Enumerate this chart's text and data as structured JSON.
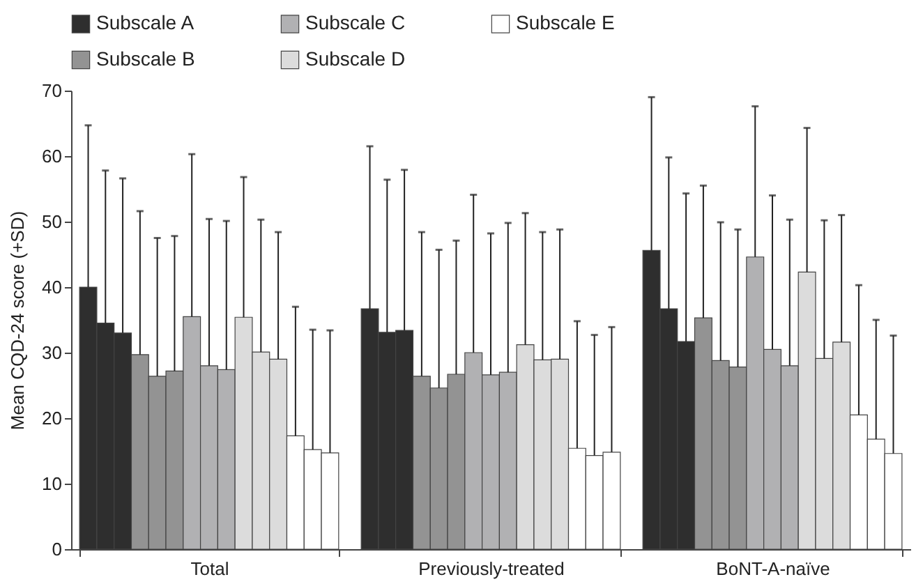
{
  "chart_data": {
    "type": "bar",
    "ylabel": "Mean CQD-24 score (+SD)",
    "categories": [
      "Total",
      "Previously-treated",
      "BoNT-A-naïve"
    ],
    "ylim": [
      0,
      70
    ],
    "yticks": [
      0,
      10,
      20,
      30,
      40,
      50,
      60,
      70
    ],
    "grid": false,
    "legend": "top",
    "series": [
      {
        "name": "Subscale A",
        "color": "#2e2e2e",
        "values": [
          40.0,
          36.7,
          45.6
        ],
        "errors": [
          [
            40.0,
            64.7
          ],
          [
            36.7,
            61.5
          ],
          [
            45.6,
            69.0
          ]
        ]
      },
      {
        "color": "#2e2e2e",
        "values": [
          34.5,
          33.1,
          36.7
        ],
        "errors": [
          [
            34.5,
            57.8
          ],
          [
            33.1,
            56.4
          ],
          [
            36.7,
            59.8
          ]
        ]
      },
      {
        "color": "#2e2e2e",
        "values": [
          33.0,
          33.4,
          31.7
        ],
        "errors": [
          [
            33.0,
            56.6
          ],
          [
            33.4,
            57.9
          ],
          [
            31.7,
            54.3
          ]
        ]
      },
      {
        "name": "Subscale B",
        "color": "#939393",
        "values": [
          29.7,
          26.4,
          35.3
        ],
        "errors": [
          [
            29.7,
            51.6
          ],
          [
            26.4,
            48.4
          ],
          [
            35.3,
            55.5
          ]
        ]
      },
      {
        "color": "#939393",
        "values": [
          26.4,
          24.6,
          28.8
        ],
        "errors": [
          [
            26.4,
            47.5
          ],
          [
            24.6,
            45.7
          ],
          [
            28.8,
            49.9
          ]
        ]
      },
      {
        "color": "#939393",
        "values": [
          27.2,
          26.7,
          27.8
        ],
        "errors": [
          [
            27.2,
            47.8
          ],
          [
            26.7,
            47.1
          ],
          [
            27.8,
            48.8
          ]
        ]
      },
      {
        "name": "Subscale C",
        "color": "#b1b1b3",
        "values": [
          35.5,
          30.0,
          44.6
        ],
        "errors": [
          [
            35.5,
            60.3
          ],
          [
            30.0,
            54.1
          ],
          [
            44.6,
            67.6
          ]
        ]
      },
      {
        "color": "#b1b1b3",
        "values": [
          28.0,
          26.6,
          30.5
        ],
        "errors": [
          [
            28.0,
            50.4
          ],
          [
            26.6,
            48.2
          ],
          [
            30.5,
            54.0
          ]
        ]
      },
      {
        "color": "#b1b1b3",
        "values": [
          27.4,
          27.0,
          28.0
        ],
        "errors": [
          [
            27.4,
            50.1
          ],
          [
            27.0,
            49.8
          ],
          [
            28.0,
            50.3
          ]
        ]
      },
      {
        "name": "Subscale D",
        "color": "#dcdcdc",
        "values": [
          35.4,
          31.2,
          42.3
        ],
        "errors": [
          [
            35.4,
            56.8
          ],
          [
            31.2,
            51.3
          ],
          [
            42.3,
            64.3
          ]
        ]
      },
      {
        "color": "#dcdcdc",
        "values": [
          30.1,
          28.9,
          29.1
        ],
        "errors": [
          [
            30.1,
            50.3
          ],
          [
            28.9,
            48.4
          ],
          [
            29.1,
            50.2
          ]
        ]
      },
      {
        "color": "#dcdcdc",
        "values": [
          29.0,
          29.0,
          31.6
        ],
        "errors": [
          [
            29.0,
            48.4
          ],
          [
            29.0,
            48.8
          ],
          [
            31.6,
            51.0
          ]
        ]
      },
      {
        "name": "Subscale E",
        "color": "#ffffff",
        "values": [
          17.3,
          15.4,
          20.5
        ],
        "errors": [
          [
            17.3,
            37.0
          ],
          [
            15.4,
            34.8
          ],
          [
            20.5,
            40.3
          ]
        ]
      },
      {
        "color": "#ffffff",
        "values": [
          15.2,
          14.3,
          16.8
        ],
        "errors": [
          [
            15.2,
            33.5
          ],
          [
            14.3,
            32.7
          ],
          [
            16.8,
            35.0
          ]
        ]
      },
      {
        "color": "#ffffff",
        "values": [
          14.7,
          14.8,
          14.6
        ],
        "errors": [
          [
            14.7,
            33.4
          ],
          [
            14.8,
            33.9
          ],
          [
            14.6,
            32.6
          ]
        ]
      }
    ]
  }
}
